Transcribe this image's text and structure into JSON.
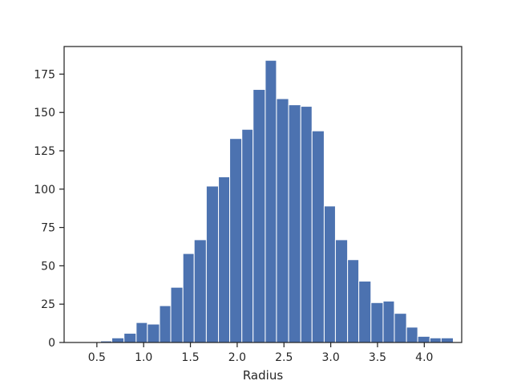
{
  "chart_data": {
    "type": "bar",
    "title": "",
    "xlabel": "Radius",
    "ylabel": "",
    "xlim": [
      0.15,
      4.4
    ],
    "ylim": [
      0,
      193
    ],
    "bin_start": 0.54,
    "bin_width": 0.1255,
    "bins": [
      {
        "x0": 0.54,
        "x1": 0.66,
        "count": 1
      },
      {
        "x0": 0.66,
        "x1": 0.79,
        "count": 3
      },
      {
        "x0": 0.79,
        "x1": 0.92,
        "count": 6
      },
      {
        "x0": 0.92,
        "x1": 1.04,
        "count": 13
      },
      {
        "x0": 1.04,
        "x1": 1.17,
        "count": 12
      },
      {
        "x0": 1.17,
        "x1": 1.29,
        "count": 24
      },
      {
        "x0": 1.29,
        "x1": 1.42,
        "count": 36
      },
      {
        "x0": 1.42,
        "x1": 1.54,
        "count": 58
      },
      {
        "x0": 1.54,
        "x1": 1.67,
        "count": 67
      },
      {
        "x0": 1.67,
        "x1": 1.8,
        "count": 102
      },
      {
        "x0": 1.8,
        "x1": 1.92,
        "count": 108
      },
      {
        "x0": 1.92,
        "x1": 2.05,
        "count": 133
      },
      {
        "x0": 2.05,
        "x1": 2.17,
        "count": 139
      },
      {
        "x0": 2.17,
        "x1": 2.3,
        "count": 165
      },
      {
        "x0": 2.3,
        "x1": 2.42,
        "count": 184
      },
      {
        "x0": 2.42,
        "x1": 2.55,
        "count": 159
      },
      {
        "x0": 2.55,
        "x1": 2.68,
        "count": 155
      },
      {
        "x0": 2.68,
        "x1": 2.8,
        "count": 154
      },
      {
        "x0": 2.8,
        "x1": 2.93,
        "count": 138
      },
      {
        "x0": 2.93,
        "x1": 3.05,
        "count": 89
      },
      {
        "x0": 3.05,
        "x1": 3.18,
        "count": 67
      },
      {
        "x0": 3.18,
        "x1": 3.3,
        "count": 54
      },
      {
        "x0": 3.3,
        "x1": 3.43,
        "count": 40
      },
      {
        "x0": 3.43,
        "x1": 3.56,
        "count": 26
      },
      {
        "x0": 3.56,
        "x1": 3.68,
        "count": 27
      },
      {
        "x0": 3.68,
        "x1": 3.81,
        "count": 19
      },
      {
        "x0": 3.81,
        "x1": 3.93,
        "count": 10
      },
      {
        "x0": 3.93,
        "x1": 4.06,
        "count": 4
      },
      {
        "x0": 4.06,
        "x1": 4.18,
        "count": 3
      },
      {
        "x0": 4.18,
        "x1": 4.31,
        "count": 3
      }
    ],
    "x_ticks": [
      "0.5",
      "1.0",
      "1.5",
      "2.0",
      "2.5",
      "3.0",
      "3.5",
      "4.0"
    ],
    "y_ticks": [
      "0",
      "25",
      "50",
      "75",
      "100",
      "125",
      "150",
      "175"
    ],
    "bar_color": "#4c72b0",
    "bar_edge_color": "#ffffff",
    "grid": false,
    "legend": "none"
  }
}
